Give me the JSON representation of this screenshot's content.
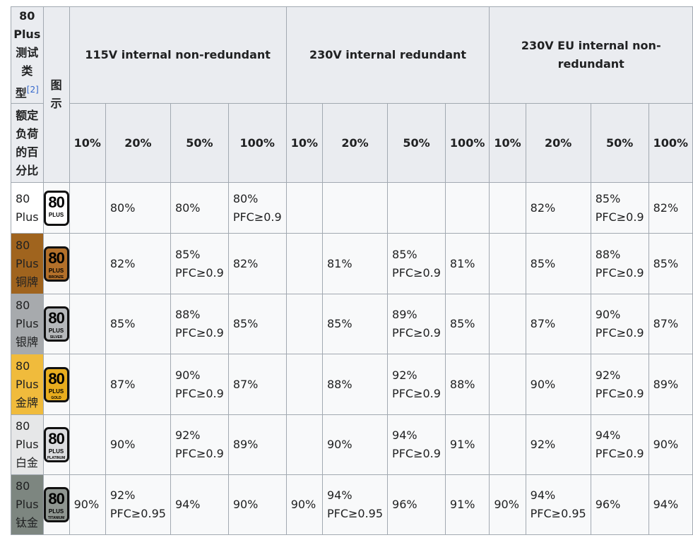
{
  "header": {
    "type_label_line1": "80",
    "type_label_line2": "Plus",
    "type_label_line3": "测试",
    "type_label_line4": "类",
    "type_label_line5": "型",
    "type_ref": "[2]",
    "image_label": "图示",
    "load_label_line1": "额定",
    "load_label_line2": "负荷",
    "load_label_line3": "的百",
    "load_label_line4": "分比",
    "groups": [
      "115V internal non-redundant",
      "230V internal redundant",
      "230V EU internal non-redundant"
    ],
    "loads": [
      "10%",
      "20%",
      "50%",
      "100%",
      "10%",
      "20%",
      "50%",
      "100%",
      "10%",
      "20%",
      "50%",
      "100%"
    ]
  },
  "rows": [
    {
      "name_line1": "80",
      "name_line2": "Plus",
      "name_line3": "",
      "label_bg": "#ffffff",
      "logo": {
        "num": "80",
        "plus": "PLUS",
        "tier": "",
        "bg": "#ffffff",
        "fg": "#000000"
      },
      "cells": [
        {
          "a": "",
          "b": ""
        },
        {
          "a": "80%",
          "b": ""
        },
        {
          "a": "80%",
          "b": ""
        },
        {
          "a": "80%",
          "b": "PFC≥0.9"
        },
        {
          "a": "",
          "b": ""
        },
        {
          "a": "",
          "b": ""
        },
        {
          "a": "",
          "b": ""
        },
        {
          "a": "",
          "b": ""
        },
        {
          "a": "",
          "b": ""
        },
        {
          "a": "82%",
          "b": ""
        },
        {
          "a": "85%",
          "b": "PFC≥0.9"
        },
        {
          "a": "82%",
          "b": ""
        }
      ]
    },
    {
      "name_line1": "80",
      "name_line2": "Plus",
      "name_line3": "铜牌",
      "label_bg": "#a0641e",
      "logo": {
        "num": "80",
        "plus": "PLUS",
        "tier": "BRONZE",
        "bg": "#b3702a",
        "fg": "#000000"
      },
      "cells": [
        {
          "a": "",
          "b": ""
        },
        {
          "a": "82%",
          "b": ""
        },
        {
          "a": "85%",
          "b": "PFC≥0.9"
        },
        {
          "a": "82%",
          "b": ""
        },
        {
          "a": "",
          "b": ""
        },
        {
          "a": "81%",
          "b": ""
        },
        {
          "a": "85%",
          "b": "PFC≥0.9"
        },
        {
          "a": "81%",
          "b": ""
        },
        {
          "a": "",
          "b": ""
        },
        {
          "a": "85%",
          "b": ""
        },
        {
          "a": "88%",
          "b": "PFC≥0.9"
        },
        {
          "a": "85%",
          "b": ""
        }
      ]
    },
    {
      "name_line1": "80",
      "name_line2": "Plus",
      "name_line3": "银牌",
      "label_bg": "#a7aaad",
      "logo": {
        "num": "80",
        "plus": "PLUS",
        "tier": "SILVER",
        "bg": "#b5b8bb",
        "fg": "#000000"
      },
      "cells": [
        {
          "a": "",
          "b": ""
        },
        {
          "a": "85%",
          "b": ""
        },
        {
          "a": "88%",
          "b": "PFC≥0.9"
        },
        {
          "a": "85%",
          "b": ""
        },
        {
          "a": "",
          "b": ""
        },
        {
          "a": "85%",
          "b": ""
        },
        {
          "a": "89%",
          "b": "PFC≥0.9"
        },
        {
          "a": "85%",
          "b": ""
        },
        {
          "a": "",
          "b": ""
        },
        {
          "a": "87%",
          "b": ""
        },
        {
          "a": "90%",
          "b": "PFC≥0.9"
        },
        {
          "a": "87%",
          "b": ""
        }
      ]
    },
    {
      "name_line1": "80",
      "name_line2": "Plus",
      "name_line3": "金牌",
      "label_bg": "#f0bb3c",
      "logo": {
        "num": "80",
        "plus": "PLUS",
        "tier": "GOLD",
        "bg": "#e8ad1e",
        "fg": "#000000"
      },
      "cells": [
        {
          "a": "",
          "b": ""
        },
        {
          "a": "87%",
          "b": ""
        },
        {
          "a": "90%",
          "b": "PFC≥0.9"
        },
        {
          "a": "87%",
          "b": ""
        },
        {
          "a": "",
          "b": ""
        },
        {
          "a": "88%",
          "b": ""
        },
        {
          "a": "92%",
          "b": "PFC≥0.9"
        },
        {
          "a": "88%",
          "b": ""
        },
        {
          "a": "",
          "b": ""
        },
        {
          "a": "90%",
          "b": ""
        },
        {
          "a": "92%",
          "b": "PFC≥0.9"
        },
        {
          "a": "89%",
          "b": ""
        }
      ]
    },
    {
      "name_line1": "80",
      "name_line2": "Plus",
      "name_line3": "白金",
      "label_bg": "#e6e7e8",
      "logo": {
        "num": "80",
        "plus": "PLUS",
        "tier": "PLATINUM",
        "bg": "#dcdde0",
        "fg": "#000000"
      },
      "cells": [
        {
          "a": "",
          "b": ""
        },
        {
          "a": "90%",
          "b": ""
        },
        {
          "a": "92%",
          "b": "PFC≥0.9"
        },
        {
          "a": "89%",
          "b": ""
        },
        {
          "a": "",
          "b": ""
        },
        {
          "a": "90%",
          "b": ""
        },
        {
          "a": "94%",
          "b": "PFC≥0.9"
        },
        {
          "a": "91%",
          "b": ""
        },
        {
          "a": "",
          "b": ""
        },
        {
          "a": "92%",
          "b": ""
        },
        {
          "a": "94%",
          "b": "PFC≥0.9"
        },
        {
          "a": "90%",
          "b": ""
        }
      ]
    },
    {
      "name_line1": "80",
      "name_line2": "Plus",
      "name_line3": "钛金",
      "label_bg": "#7d8680",
      "logo": {
        "num": "80",
        "plus": "PLUS",
        "tier": "TITANIUM",
        "bg": "#8f9691",
        "fg": "#000000"
      },
      "cells": [
        {
          "a": "90%",
          "b": ""
        },
        {
          "a": "92%",
          "b": "PFC≥0.95"
        },
        {
          "a": "94%",
          "b": ""
        },
        {
          "a": "90%",
          "b": ""
        },
        {
          "a": "90%",
          "b": ""
        },
        {
          "a": "94%",
          "b": "PFC≥0.95"
        },
        {
          "a": "96%",
          "b": ""
        },
        {
          "a": "91%",
          "b": ""
        },
        {
          "a": "90%",
          "b": ""
        },
        {
          "a": "94%",
          "b": "PFC≥0.95"
        },
        {
          "a": "96%",
          "b": ""
        },
        {
          "a": "94%",
          "b": ""
        }
      ]
    }
  ]
}
